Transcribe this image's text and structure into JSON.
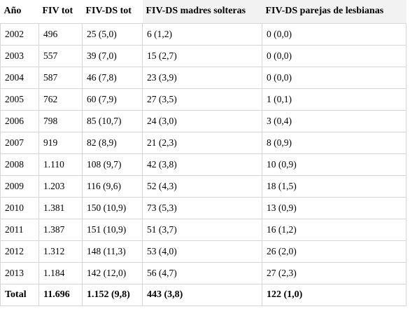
{
  "table": {
    "headers": [
      "Año",
      "FIV tot",
      "FIV-DS tot",
      "FIV-DS madres solteras",
      "FIV-DS parejas de lesbianas"
    ],
    "rows": [
      [
        "2002",
        "496",
        "25 (5,0)",
        "6 (1,2)",
        "0 (0,0)"
      ],
      [
        "2003",
        "557",
        "39 (7,0)",
        "15 (2,7)",
        "0 (0,0)"
      ],
      [
        "2004",
        "587",
        "46 (7,8)",
        "23 (3,9)",
        "0 (0,0)"
      ],
      [
        "2005",
        "762",
        "60 (7,9)",
        "27 (3,5)",
        "1 (0,1)"
      ],
      [
        "2006",
        "798",
        "85 (10,7)",
        "24 (3,0)",
        "3 (0,4)"
      ],
      [
        "2007",
        "919",
        "82 (8,9)",
        "21 (2,3)",
        "8 (0,9)"
      ],
      [
        "2008",
        "1.110",
        "108 (9,7)",
        "42 (3,8)",
        "10 (0,9)"
      ],
      [
        "2009",
        "1.203",
        "116 (9,6)",
        "52 (4,3)",
        "18 (1,5)"
      ],
      [
        "2010",
        "1.381",
        "150 (10,9)",
        "73 (5,3)",
        "13 (0,9)"
      ],
      [
        "2011",
        "1.387",
        "151 (10,9)",
        "51 (3,7)",
        "16 (1,2)"
      ],
      [
        "2012",
        "1.312",
        "148 (11,3)",
        "53 (4,0)",
        "26 (2,0)"
      ],
      [
        "2013",
        "1.184",
        "142 (12,0)",
        "56 (4,7)",
        "27 (2,3)"
      ]
    ],
    "total": [
      "Total",
      "11.696",
      "1.152 (9,8)",
      "443 (3,8)",
      "122 (1,0)"
    ]
  }
}
